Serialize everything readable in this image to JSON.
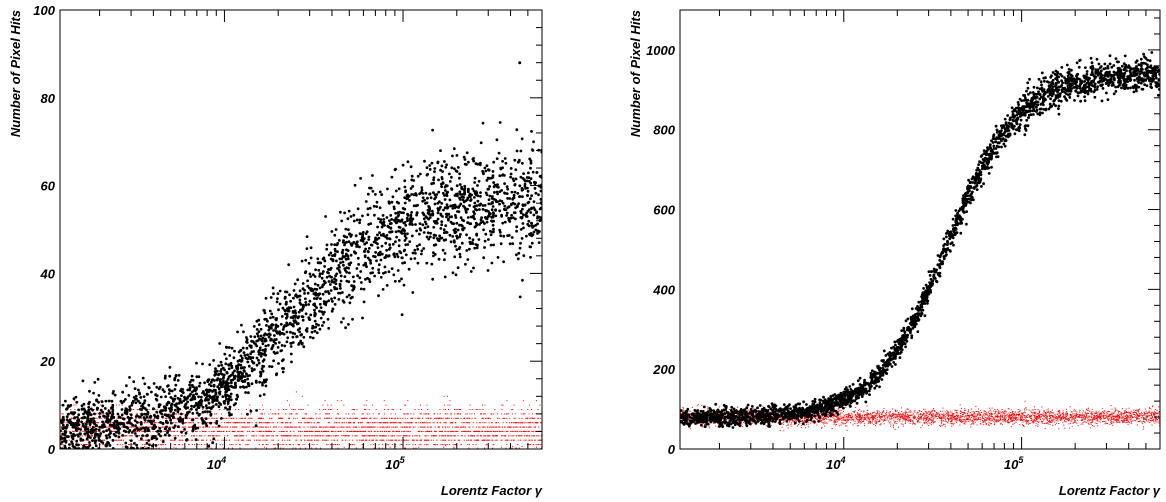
{
  "chart_data": [
    {
      "type": "scatter",
      "xlabel": "Lorentz Factor γ",
      "ylabel": "Number of Pixel Hits",
      "x_scale": "log",
      "xlim": [
        1200,
        600000
      ],
      "ylim": [
        0,
        100
      ],
      "y_ticks": [
        "0",
        "20",
        "40",
        "60",
        "80",
        "100"
      ],
      "x_ticks": [
        {
          "value": 10000,
          "base": "10",
          "exp": "4"
        },
        {
          "value": 100000,
          "base": "10",
          "exp": "5"
        }
      ],
      "grid": false,
      "series": [
        {
          "color": "#000000",
          "marker": "dot",
          "count": 2600,
          "curve": {
            "baseline": 4.5,
            "plateau": 57,
            "midpoint_gamma": 25000,
            "width_decades": 0.28
          },
          "spread": 5.5,
          "max_point": [
            450000,
            88
          ]
        },
        {
          "color": "#ff0000",
          "marker": "tiny",
          "count": 3200,
          "level": 4.5,
          "spread": 2.5,
          "discrete": true
        }
      ]
    },
    {
      "type": "scatter",
      "xlabel": "Lorentz Factor γ",
      "ylabel": "Number of Pixel Hits",
      "x_scale": "log",
      "xlim": [
        1200,
        600000
      ],
      "ylim": [
        0,
        1100
      ],
      "y_ticks": [
        "0",
        "200",
        "400",
        "600",
        "800",
        "1000"
      ],
      "x_ticks": [
        {
          "value": 10000,
          "base": "10",
          "exp": "4"
        },
        {
          "value": 100000,
          "base": "10",
          "exp": "5"
        }
      ],
      "grid": false,
      "series": [
        {
          "color": "#000000",
          "marker": "dot",
          "count": 2600,
          "curve": {
            "baseline": 78,
            "plateau": 940,
            "midpoint_gamma": 38000,
            "width_decades": 0.2
          },
          "spread": 18
        },
        {
          "color": "#ff0000",
          "marker": "tiny",
          "count": 3500,
          "level": 80,
          "spread": 10,
          "discrete": false
        }
      ]
    }
  ]
}
